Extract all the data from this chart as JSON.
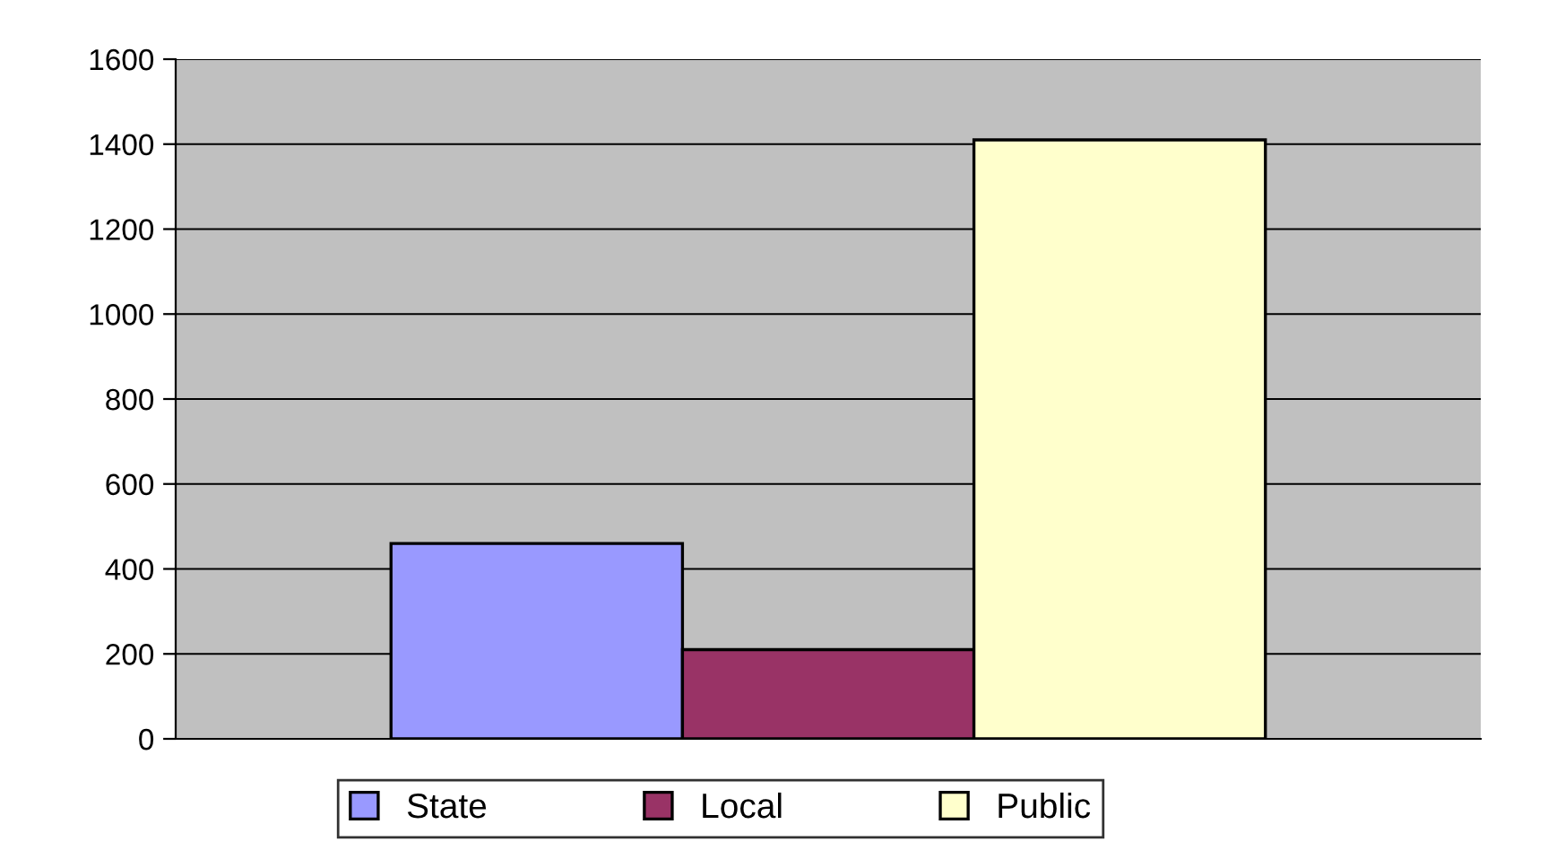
{
  "chart_data": {
    "type": "bar",
    "categories": [
      null
    ],
    "series": [
      {
        "name": "State",
        "color": "#9999ff",
        "values": [
          460
        ]
      },
      {
        "name": "Local",
        "color": "#993366",
        "values": [
          210
        ]
      },
      {
        "name": "Public",
        "color": "#ffffcc",
        "values": [
          1410
        ]
      }
    ],
    "ylim": [
      0,
      1600
    ],
    "yticks": [
      0,
      200,
      400,
      600,
      800,
      1000,
      1200,
      1400,
      1600
    ],
    "grid": "y",
    "legend": "bottom"
  }
}
